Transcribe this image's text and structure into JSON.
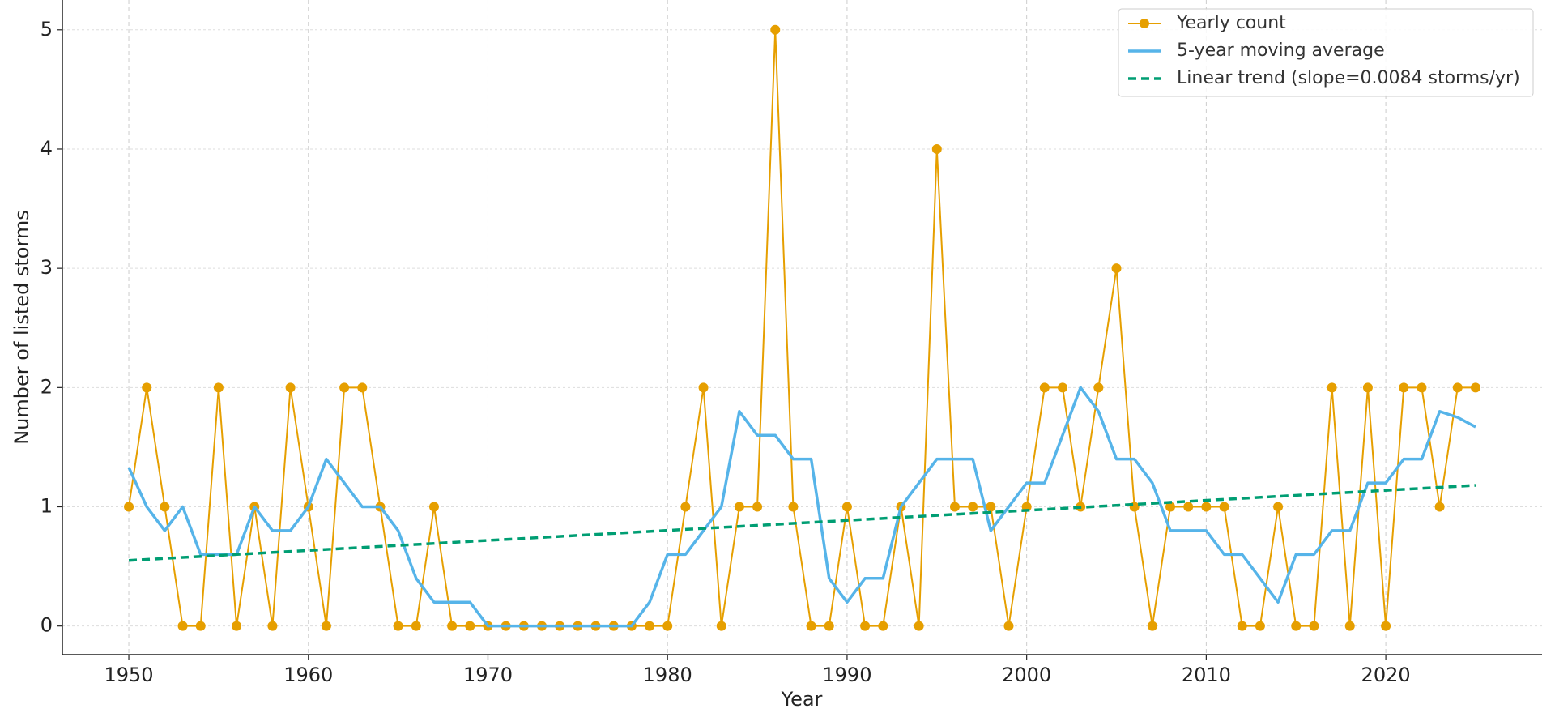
{
  "chart_data": {
    "type": "line",
    "xlabel": "Year",
    "ylabel": "Number of listed storms",
    "x": [
      1950,
      1951,
      1952,
      1953,
      1954,
      1955,
      1956,
      1957,
      1958,
      1959,
      1960,
      1961,
      1962,
      1963,
      1964,
      1965,
      1966,
      1967,
      1968,
      1969,
      1970,
      1971,
      1972,
      1973,
      1974,
      1975,
      1976,
      1977,
      1978,
      1979,
      1980,
      1981,
      1982,
      1983,
      1984,
      1985,
      1986,
      1987,
      1988,
      1989,
      1990,
      1991,
      1992,
      1993,
      1994,
      1995,
      1996,
      1997,
      1998,
      1999,
      2000,
      2001,
      2002,
      2003,
      2004,
      2005,
      2006,
      2007,
      2008,
      2009,
      2010,
      2011,
      2012,
      2013,
      2014,
      2015,
      2016,
      2017,
      2018,
      2019,
      2020,
      2021,
      2022,
      2023,
      2024,
      2025
    ],
    "series": [
      {
        "name": "Yearly count",
        "color": "#E69F00",
        "marker": true,
        "values": [
          1,
          2,
          1,
          0,
          0,
          2,
          0,
          1,
          0,
          2,
          1,
          0,
          2,
          2,
          1,
          0,
          0,
          1,
          0,
          0,
          0,
          0,
          0,
          0,
          0,
          0,
          0,
          0,
          0,
          0,
          0,
          1,
          2,
          0,
          1,
          1,
          5,
          1,
          0,
          0,
          1,
          0,
          0,
          1,
          0,
          4,
          1,
          1,
          1,
          0,
          1,
          2,
          2,
          1,
          2,
          3,
          1,
          0,
          1,
          1,
          1,
          1,
          0,
          0,
          1,
          0,
          0,
          2,
          0,
          2,
          0,
          2,
          2,
          1,
          2,
          2
        ]
      },
      {
        "name": "5-year moving average",
        "color": "#56B4E9",
        "values": [
          1.33,
          1.0,
          0.8,
          1.0,
          0.6,
          0.6,
          0.6,
          1.0,
          0.8,
          0.8,
          1.0,
          1.4,
          1.2,
          1.0,
          1.0,
          0.8,
          0.4,
          0.2,
          0.2,
          0.2,
          0,
          0,
          0,
          0,
          0,
          0,
          0,
          0,
          0,
          0.2,
          0.6,
          0.6,
          0.8,
          1.0,
          1.8,
          1.6,
          1.6,
          1.4,
          1.4,
          0.4,
          0.2,
          0.4,
          0.4,
          1.0,
          1.2,
          1.4,
          1.4,
          1.4,
          0.8,
          1.0,
          1.2,
          1.2,
          1.6,
          2.0,
          1.8,
          1.4,
          1.4,
          1.2,
          0.8,
          0.8,
          0.8,
          0.6,
          0.6,
          0.4,
          0.2,
          0.6,
          0.6,
          0.8,
          0.8,
          1.2,
          1.2,
          1.4,
          1.4,
          1.8,
          1.75,
          1.67
        ]
      },
      {
        "name": "Linear trend (slope=0.0084 storms/yr)",
        "color": "#009E73",
        "dashed": true,
        "x": [
          1950,
          2025
        ],
        "values": [
          0.55,
          1.18
        ]
      }
    ],
    "xlim": [
      1946.3,
      2028.7
    ],
    "xticks": [
      1950,
      1960,
      1970,
      1980,
      1990,
      2000,
      2010,
      2020
    ],
    "ylim": [
      -0.24,
      5.25
    ],
    "yticks": [
      0,
      1,
      2,
      3,
      4,
      5
    ],
    "grid": true,
    "legend": "upper right"
  }
}
